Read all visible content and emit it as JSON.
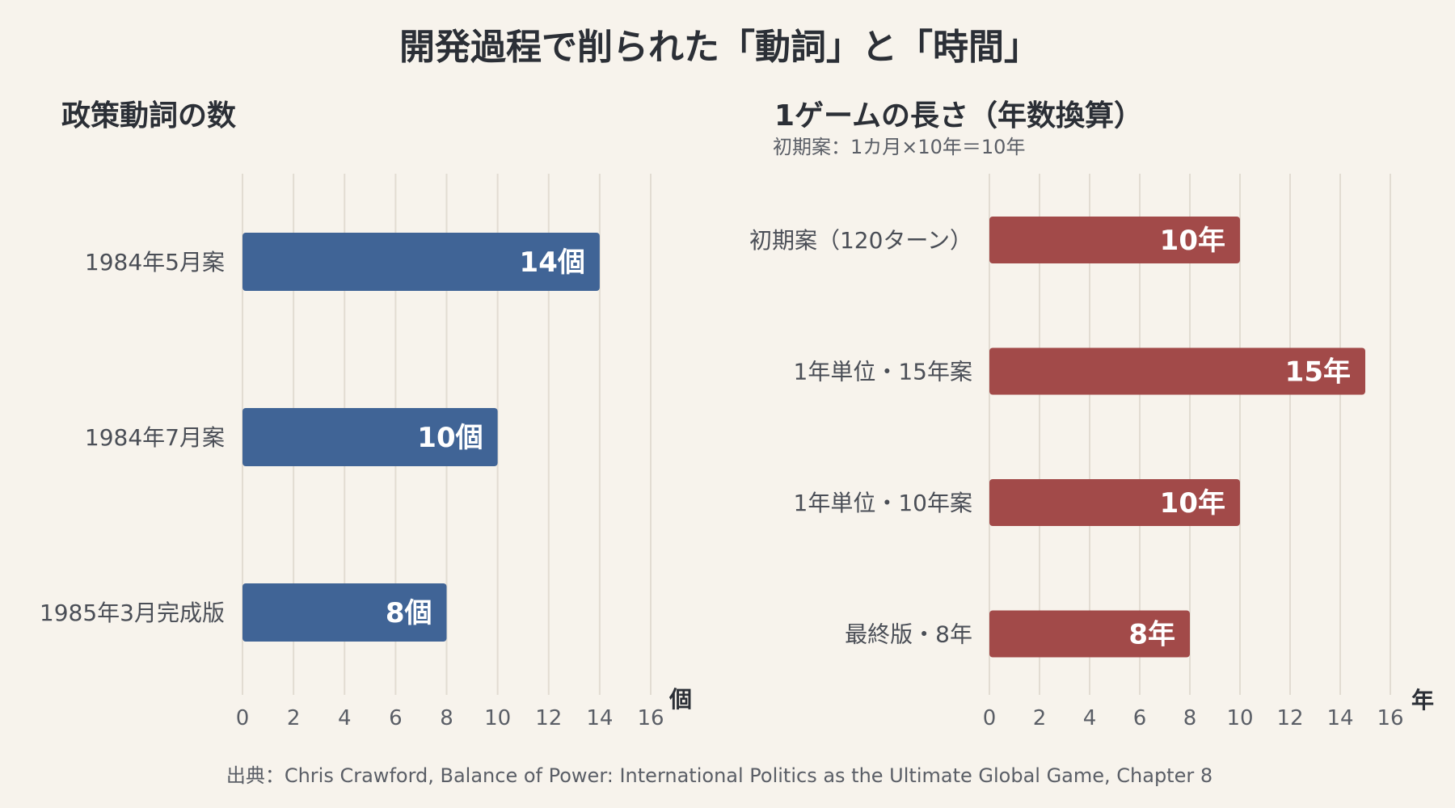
{
  "title": "開発過程で削られた「動詞」と「時間」",
  "source": "出典：Chris Crawford, Balance of Power: International Politics as the Ultimate Global Game, Chapter 8",
  "colors": {
    "verbs_bar": "#406496",
    "years_bar": "#a24a49",
    "grid": "#e2dcd2",
    "background": "#f7f3ec"
  },
  "chart_data": [
    {
      "type": "bar",
      "orientation": "horizontal",
      "title": "政策動詞の数",
      "subtitle": "",
      "xlabel": "個",
      "ylabel": "",
      "xlim": [
        0,
        16
      ],
      "xticks": [
        "0",
        "2",
        "4",
        "6",
        "8",
        "10",
        "12",
        "14",
        "16"
      ],
      "grid": true,
      "categories": [
        "1984年5月案",
        "1984年7月案",
        "1985年3月完成版"
      ],
      "values": [
        14,
        10,
        8
      ],
      "data_labels": [
        "14個",
        "10個",
        "8個"
      ]
    },
    {
      "type": "bar",
      "orientation": "horizontal",
      "title": "1ゲームの長さ（年数換算）",
      "subtitle": "初期案：1カ月×10年＝10年",
      "xlabel": "年",
      "ylabel": "",
      "xlim": [
        0,
        16
      ],
      "xticks": [
        "0",
        "2",
        "4",
        "6",
        "8",
        "10",
        "12",
        "14",
        "16"
      ],
      "grid": true,
      "categories": [
        "初期案（120ターン）",
        "1年単位・15年案",
        "1年単位・10年案",
        "最終版・8年"
      ],
      "values": [
        10,
        15,
        10,
        8
      ],
      "data_labels": [
        "10年",
        "15年",
        "10年",
        "8年"
      ]
    }
  ]
}
